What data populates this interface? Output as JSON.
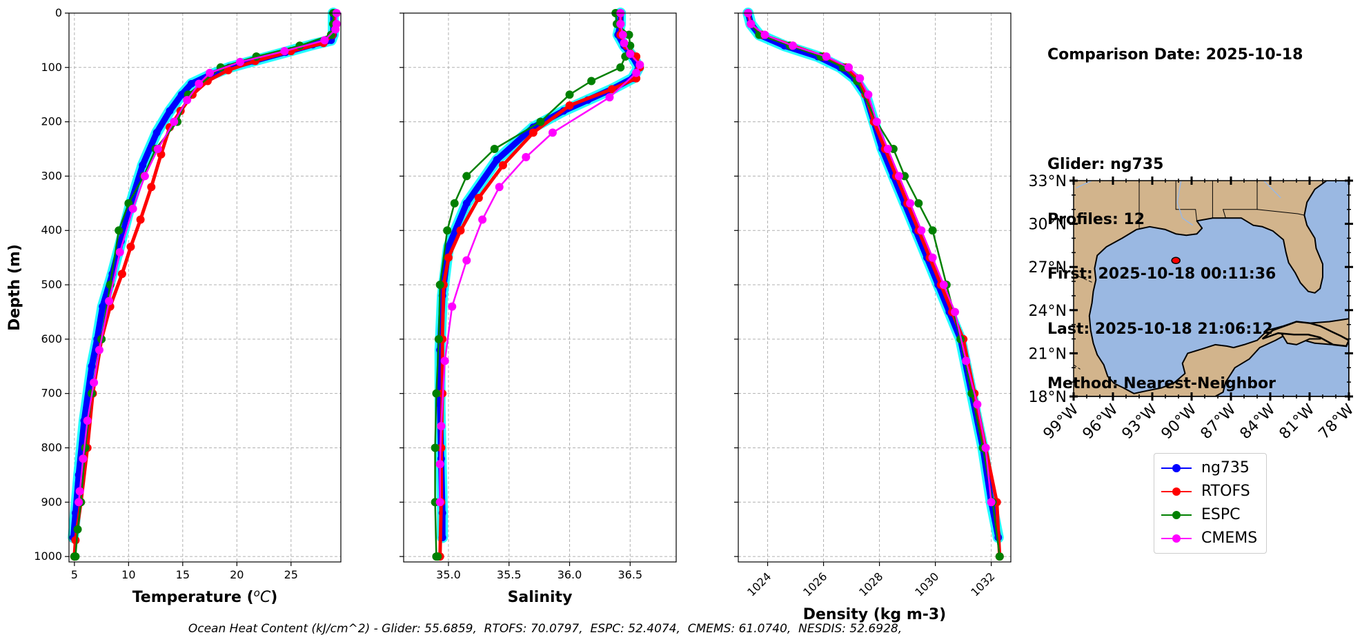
{
  "figure": {
    "info_lines": [
      "Comparison Date: 2025-10-18",
      "",
      "Glider: ng735",
      "Profiles: 12",
      "First: 2025-10-18 00:11:36",
      "Last: 2025-10-18 21:06:12",
      "Method: Nearest-Neighbor"
    ],
    "footer": "Ocean Heat Content (kJ/cm^2) - Glider: 55.6859,  RTOFS: 70.0797,  ESPC: 52.4074,  CMEMS: 61.0740,  NESDIS: 52.6928,"
  },
  "legend": [
    {
      "name": "ng735",
      "color": "#0000ff"
    },
    {
      "name": "RTOFS",
      "color": "#ff0000"
    },
    {
      "name": "ESPC",
      "color": "#008000"
    },
    {
      "name": "CMEMS",
      "color": "#ff00ff"
    }
  ],
  "chart_data": [
    {
      "type": "line",
      "xlabel": "Temperature ($^{o}C$)",
      "ylabel": "Depth (m)",
      "xlim": [
        4.5,
        29.6
      ],
      "ylim": [
        1010,
        0
      ],
      "xticks": [
        5,
        10,
        15,
        20,
        25
      ],
      "yticks": [
        0,
        100,
        200,
        300,
        400,
        500,
        600,
        700,
        800,
        900,
        1000
      ],
      "grid": true,
      "series": [
        {
          "name": "ng735",
          "color": "#0000ff",
          "x": [
            28.9,
            28.9,
            28.9,
            28.7,
            27,
            24.5,
            21.5,
            19.3,
            17.4,
            15.8,
            14.9,
            13.8,
            12.6,
            11.3,
            10.2,
            9.3,
            8.5,
            7.6,
            7.1,
            6.6,
            5.9,
            5.4,
            5.1,
            4.9
          ],
          "y": [
            0,
            20,
            40,
            50,
            58,
            72,
            88,
            100,
            115,
            130,
            150,
            180,
            220,
            280,
            350,
            420,
            480,
            540,
            600,
            650,
            750,
            850,
            920,
            965
          ]
        },
        {
          "name": "RTOFS",
          "color": "#ff0000",
          "x": [
            29,
            29,
            28.8,
            28,
            25,
            21.7,
            19.2,
            17.3,
            15.9,
            14.8,
            13.8,
            13,
            12.1,
            11.1,
            10.2,
            9.4,
            8.3,
            7.5,
            6.7,
            6.2,
            5.6,
            5.1,
            5
          ],
          "y": [
            0,
            20,
            40,
            55,
            70,
            88,
            105,
            125,
            150,
            180,
            210,
            260,
            320,
            380,
            430,
            480,
            540,
            600,
            700,
            800,
            900,
            970,
            1000
          ]
        },
        {
          "name": "ESPC",
          "color": "#008000",
          "x": [
            28.9,
            28.9,
            28.7,
            25.8,
            21.8,
            18.5,
            15.5,
            14.5,
            12.5,
            11.4,
            10,
            9.1,
            8.3,
            7.5,
            6.6,
            6,
            5.6,
            5.3,
            5.1,
            5
          ],
          "y": [
            0,
            20,
            40,
            60,
            80,
            100,
            150,
            200,
            250,
            300,
            350,
            400,
            500,
            600,
            700,
            800,
            900,
            950,
            1000,
            1000
          ]
        },
        {
          "name": "CMEMS",
          "color": "#ff00ff",
          "x": [
            29.2,
            29.2,
            29.1,
            28.1,
            24.4,
            20.3,
            17.5,
            16.5,
            15.4,
            14.2,
            12.7,
            11.5,
            10.4,
            9.2,
            8.2,
            7.3,
            6.8,
            6.2,
            5.8,
            5.5,
            5.4
          ],
          "y": [
            0,
            20,
            30,
            50,
            70,
            90,
            110,
            130,
            160,
            200,
            250,
            300,
            360,
            440,
            530,
            620,
            680,
            750,
            820,
            880,
            900
          ]
        }
      ]
    },
    {
      "type": "line",
      "xlabel": "Salinity",
      "ylabel": "",
      "xlim": [
        34.63,
        36.88
      ],
      "ylim": [
        1010,
        0
      ],
      "xticks": [
        35.0,
        35.5,
        36.0,
        36.5
      ],
      "yticks": [
        0,
        100,
        200,
        300,
        400,
        500,
        600,
        700,
        800,
        900,
        1000
      ],
      "grid": true,
      "series": [
        {
          "name": "ng735",
          "color": "#0000ff",
          "x": [
            36.42,
            36.42,
            36.4,
            36.45,
            36.52,
            36.57,
            36.52,
            36.35,
            36.15,
            35.95,
            35.7,
            35.4,
            35.15,
            35.0,
            34.95,
            34.93,
            34.93,
            34.94,
            34.95,
            34.95
          ],
          "y": [
            0,
            20,
            40,
            60,
            80,
            100,
            120,
            140,
            160,
            180,
            210,
            270,
            350,
            430,
            520,
            620,
            720,
            820,
            920,
            965
          ]
        },
        {
          "name": "RTOFS",
          "color": "#ff0000",
          "x": [
            36.42,
            36.42,
            36.42,
            36.47,
            36.55,
            36.58,
            36.55,
            36.35,
            36.0,
            35.7,
            35.45,
            35.25,
            35.1,
            35.0,
            34.96,
            34.95,
            34.95,
            34.94,
            34.94,
            34.93
          ],
          "y": [
            0,
            20,
            40,
            60,
            80,
            100,
            120,
            140,
            170,
            220,
            280,
            340,
            400,
            450,
            500,
            600,
            700,
            800,
            900,
            1000
          ]
        },
        {
          "name": "ESPC",
          "color": "#008000",
          "x": [
            36.38,
            36.39,
            36.49,
            36.5,
            36.46,
            36.42,
            36.18,
            36.0,
            35.76,
            35.38,
            35.15,
            35.05,
            34.99,
            34.93,
            34.92,
            34.9,
            34.89,
            34.89,
            34.9,
            34.91
          ],
          "y": [
            0,
            20,
            40,
            60,
            80,
            100,
            125,
            150,
            200,
            250,
            300,
            350,
            400,
            500,
            600,
            700,
            800,
            900,
            1000,
            1000
          ]
        },
        {
          "name": "CMEMS",
          "color": "#ff00ff",
          "x": [
            36.42,
            36.42,
            36.44,
            36.45,
            36.5,
            36.58,
            36.55,
            36.33,
            35.86,
            35.64,
            35.42,
            35.28,
            35.15,
            35.03,
            34.97,
            34.94,
            34.93,
            34.93
          ],
          "y": [
            0,
            20,
            40,
            55,
            75,
            95,
            110,
            155,
            220,
            265,
            320,
            380,
            455,
            540,
            640,
            760,
            830,
            900
          ]
        }
      ]
    },
    {
      "type": "line",
      "xlabel": "Density (kg m-3)",
      "ylabel": "",
      "xlim": [
        1022.95,
        1032.7
      ],
      "ylim": [
        1010,
        0
      ],
      "xticks": [
        1024,
        1026,
        1028,
        1030,
        1032
      ],
      "yticks": [
        0,
        100,
        200,
        300,
        400,
        500,
        600,
        700,
        800,
        900,
        1000
      ],
      "grid": true,
      "series": [
        {
          "name": "ng735",
          "color": "#0000ff",
          "x": [
            1023.3,
            1023.4,
            1023.7,
            1024.6,
            1025.8,
            1026.6,
            1027.1,
            1027.5,
            1027.8,
            1028.1,
            1028.5,
            1028.9,
            1029.3,
            1029.7,
            1030.1,
            1030.5,
            1030.9,
            1031.3,
            1031.7,
            1032.0,
            1032.25
          ],
          "y": [
            0,
            20,
            40,
            60,
            80,
            100,
            120,
            150,
            200,
            250,
            300,
            350,
            400,
            450,
            500,
            550,
            600,
            700,
            800,
            900,
            965
          ]
        },
        {
          "name": "RTOFS",
          "color": "#ff0000",
          "x": [
            1023.3,
            1023.4,
            1023.8,
            1024.9,
            1026.0,
            1026.8,
            1027.2,
            1027.5,
            1027.8,
            1028.2,
            1028.6,
            1029.0,
            1029.4,
            1029.8,
            1030.2,
            1030.6,
            1031.0,
            1031.4,
            1031.8,
            1032.2,
            1032.3
          ],
          "y": [
            0,
            20,
            40,
            60,
            80,
            100,
            120,
            150,
            200,
            250,
            300,
            350,
            400,
            450,
            500,
            550,
            600,
            700,
            800,
            900,
            1000
          ]
        },
        {
          "name": "ESPC",
          "color": "#008000",
          "x": [
            1023.3,
            1023.4,
            1023.7,
            1024.8,
            1025.9,
            1026.7,
            1027.2,
            1027.9,
            1028.5,
            1028.9,
            1029.4,
            1029.9,
            1030.4,
            1030.9,
            1031.3,
            1031.7,
            1032.05,
            1032.3
          ],
          "y": [
            0,
            20,
            40,
            60,
            80,
            100,
            125,
            200,
            250,
            300,
            350,
            400,
            500,
            600,
            700,
            800,
            900,
            1000
          ]
        },
        {
          "name": "CMEMS",
          "color": "#ff00ff",
          "x": [
            1023.3,
            1023.4,
            1023.9,
            1024.9,
            1026.1,
            1026.9,
            1027.3,
            1027.6,
            1027.9,
            1028.3,
            1028.7,
            1029.1,
            1029.5,
            1029.9,
            1030.3,
            1030.7,
            1031.1,
            1031.5,
            1031.8,
            1032.0
          ],
          "y": [
            0,
            20,
            40,
            60,
            80,
            100,
            120,
            150,
            200,
            250,
            300,
            350,
            400,
            450,
            500,
            550,
            640,
            720,
            800,
            900
          ]
        }
      ]
    },
    {
      "type": "map",
      "xticks": [
        "99°W",
        "96°W",
        "93°W",
        "90°W",
        "87°W",
        "84°W",
        "81°W",
        "78°W"
      ],
      "yticks": [
        "33°N",
        "30°N",
        "27°N",
        "24°N",
        "21°N",
        "18°N"
      ],
      "lon_range": [
        -99,
        -78
      ],
      "lat_range": [
        18,
        33
      ],
      "glider_position": {
        "lon": -91.2,
        "lat": 27.45
      },
      "land_color": "#d2b48c",
      "water_color": "#9ab8e2"
    }
  ]
}
